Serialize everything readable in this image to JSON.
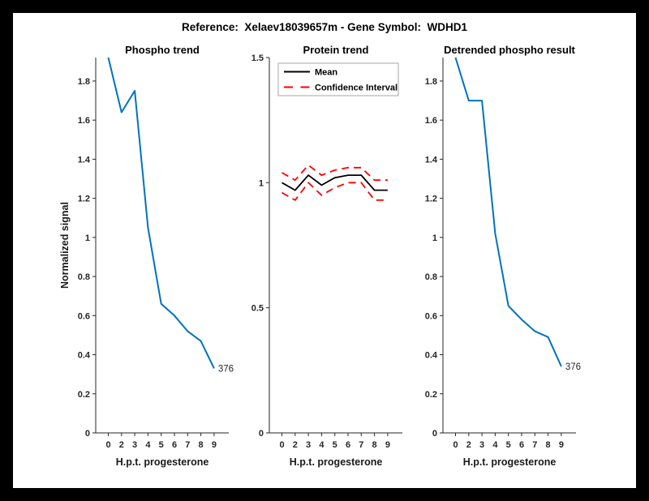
{
  "figure": {
    "title": "Reference:  Xelaev18039657m - Gene Symbol:  WDHD1",
    "background": "#000000",
    "canvas_background": "#ffffff",
    "axis_color": "#262626",
    "line_blue": "#0072BD",
    "ci_red": "#ff0000",
    "mean_black": "#000000"
  },
  "chart_data": [
    {
      "type": "line",
      "title": "Phospho trend",
      "xlabel": "H.p.t. progesterone",
      "ylabel": "Normalized signal",
      "categories": [
        "0",
        "2",
        "3",
        "4",
        "5",
        "6",
        "7",
        "8",
        "9"
      ],
      "values": [
        1.92,
        1.64,
        1.75,
        1.05,
        0.66,
        0.6,
        0.52,
        0.47,
        0.33
      ],
      "line_color": "#0072BD",
      "ylim": [
        0,
        1.92
      ],
      "yticks": [
        0,
        0.2,
        0.4,
        0.6,
        0.8,
        1,
        1.2,
        1.4,
        1.6,
        1.8
      ],
      "yticklabels": [
        "0",
        "0.2",
        "0.4",
        "0.6",
        "0.8",
        "1",
        "1.2",
        "1.4",
        "1.6",
        "1.8"
      ],
      "grid": false,
      "legend": null,
      "end_label": "376"
    },
    {
      "type": "line",
      "title": "Protein trend",
      "xlabel": "H.p.t. progesterone",
      "ylabel": "",
      "categories": [
        "0",
        "2",
        "3",
        "4",
        "5",
        "6",
        "7",
        "8",
        "9"
      ],
      "series": [
        {
          "name": "Confidence Interval upper",
          "role": "ci-upper",
          "style": "dashed",
          "color": "#ff0000",
          "values": [
            1.04,
            1.01,
            1.07,
            1.03,
            1.05,
            1.06,
            1.06,
            1.01,
            1.01
          ]
        },
        {
          "name": "Confidence Interval lower",
          "role": "ci-lower",
          "style": "dashed",
          "color": "#ff0000",
          "values": [
            0.96,
            0.93,
            1.0,
            0.95,
            0.98,
            1.0,
            1.0,
            0.93,
            0.93
          ]
        },
        {
          "name": "Mean",
          "role": "mean",
          "style": "solid",
          "color": "#000000",
          "values": [
            1.0,
            0.97,
            1.03,
            0.99,
            1.02,
            1.03,
            1.03,
            0.97,
            0.97
          ]
        }
      ],
      "legend": {
        "position": "northwest",
        "entries": [
          {
            "label": "Mean",
            "color": "#000000",
            "style": "solid"
          },
          {
            "label": "Confidence Interval",
            "color": "#ff0000",
            "style": "dashed"
          }
        ]
      },
      "ylim": [
        0,
        1.5
      ],
      "yticks": [
        0,
        0.5,
        1,
        1.5
      ],
      "yticklabels": [
        "0",
        "0.5",
        "1",
        "1.5"
      ],
      "grid": false,
      "end_label": null
    },
    {
      "type": "line",
      "title": "Detrended phospho result",
      "xlabel": "H.p.t. progesterone",
      "ylabel": "",
      "categories": [
        "0",
        "2",
        "3",
        "4",
        "5",
        "6",
        "7",
        "8",
        "9"
      ],
      "values": [
        1.92,
        1.7,
        1.7,
        1.02,
        0.65,
        0.58,
        0.52,
        0.49,
        0.34
      ],
      "line_color": "#0072BD",
      "ylim": [
        0,
        1.92
      ],
      "yticks": [
        0,
        0.2,
        0.4,
        0.6,
        0.8,
        1,
        1.2,
        1.4,
        1.6,
        1.8
      ],
      "yticklabels": [
        "0",
        "0.2",
        "0.4",
        "0.6",
        "0.8",
        "1",
        "1.2",
        "1.4",
        "1.6",
        "1.8"
      ],
      "grid": false,
      "legend": null,
      "end_label": "376"
    }
  ]
}
